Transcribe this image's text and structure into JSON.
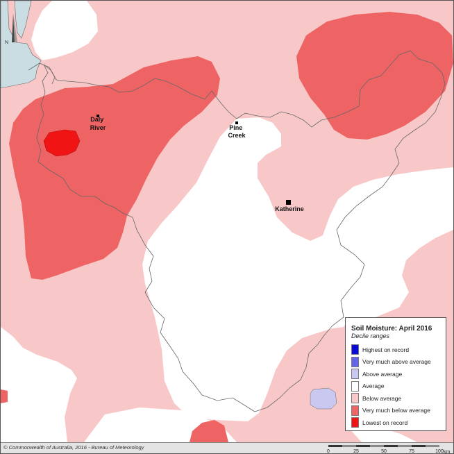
{
  "map": {
    "towns": [
      {
        "name_lines": [
          "Daly",
          "River"
        ]
      },
      {
        "name_lines": [
          "Pine",
          "Creek"
        ]
      },
      {
        "name_lines": [
          "Katherine"
        ]
      }
    ],
    "north_arrow_letter": "N"
  },
  "legend": {
    "title": "Soil Moisture: April 2016",
    "subtitle": "Decile ranges",
    "items": [
      {
        "label": "Highest on record",
        "color": "#0a0ad8"
      },
      {
        "label": "Very much above average",
        "color": "#6464e8"
      },
      {
        "label": "Above average",
        "color": "#c8c8f0"
      },
      {
        "label": "Average",
        "color": "#ffffff"
      },
      {
        "label": "Below average",
        "color": "#f8c8c8"
      },
      {
        "label": "Very much below average",
        "color": "#ee6464"
      },
      {
        "label": "Lowest on record",
        "color": "#f01414"
      }
    ]
  },
  "footer": {
    "copyright": "© Commonwealth of Australia, 2016 - Bureau of Meteorology",
    "scale": {
      "ticks": [
        "0",
        "25",
        "50",
        "75",
        "100"
      ],
      "unit": "km"
    }
  },
  "colors": {
    "sea": "#c9dde2",
    "below_average": "#f8c8c8",
    "very_much_below_average": "#ee6464",
    "lowest_on_record": "#f01414",
    "above_average": "#c8c8f0",
    "boundary": "#666666"
  }
}
